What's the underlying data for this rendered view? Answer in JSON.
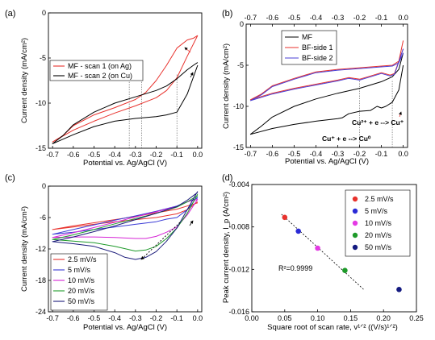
{
  "chart_data": [
    {
      "panel": "(a)",
      "type": "line",
      "xlabel": "Potential vs. Ag/AgCl (V)",
      "ylabel": "Current density (mA/cm²)",
      "xlim": [
        -0.72,
        0.02
      ],
      "ylim": [
        -15,
        0
      ],
      "xticks": [
        -0.7,
        -0.6,
        -0.5,
        -0.4,
        -0.3,
        -0.2,
        -0.1,
        0.0
      ],
      "yticks": [
        -15,
        -10,
        -5,
        0
      ],
      "xtick_labels": [
        "-0.7",
        "-0.6",
        "-0.5",
        "-0.4",
        "-0.3",
        "-0.2",
        "-0.1",
        "0.0"
      ],
      "ytick_labels": [
        "-15",
        "-10",
        "-5",
        "0"
      ],
      "legend_position": "top-left",
      "series": [
        {
          "name": "MF - scan 1 (on Ag)",
          "color": "#e8322d",
          "x": [
            0,
            -0.05,
            -0.1,
            -0.15,
            -0.2,
            -0.3,
            -0.4,
            -0.5,
            -0.6,
            -0.7,
            -0.65,
            -0.6,
            -0.5,
            -0.4,
            -0.3,
            -0.25,
            -0.2,
            -0.15,
            -0.1,
            -0.05,
            -0.02,
            0
          ],
          "y": [
            -2.5,
            -4.8,
            -7.2,
            -8.6,
            -9.4,
            -10.3,
            -11.1,
            -12,
            -13,
            -14.3,
            -13.6,
            -12.5,
            -11.3,
            -10.5,
            -9.6,
            -8.8,
            -7.5,
            -5.8,
            -3.9,
            -3,
            -2.8,
            -2.5
          ]
        },
        {
          "name": "MF - scan 2 (on Cu)",
          "color": "#000000",
          "x": [
            0,
            -0.05,
            -0.1,
            -0.15,
            -0.2,
            -0.3,
            -0.4,
            -0.5,
            -0.6,
            -0.7,
            -0.65,
            -0.6,
            -0.5,
            -0.4,
            -0.3,
            -0.2,
            -0.15,
            -0.1,
            -0.05,
            -0.02,
            0
          ],
          "y": [
            -5.8,
            -9,
            -11,
            -11.3,
            -11.5,
            -11.7,
            -12,
            -12.6,
            -13.5,
            -14.5,
            -13.6,
            -12.4,
            -11,
            -10,
            -9.3,
            -8.6,
            -8.1,
            -7.3,
            -6.3,
            -5.8,
            -5.5
          ]
        }
      ],
      "guides_x": [
        -0.33,
        -0.27,
        -0.1
      ]
    },
    {
      "panel": "(b)",
      "type": "line",
      "xlabel": "Potential vs. Ag/AgCl (V)",
      "ylabel": "Current density (mA/cm²)",
      "xlim": [
        -0.72,
        0.02
      ],
      "ylim": [
        -15,
        0
      ],
      "xticks": [
        -0.7,
        -0.6,
        -0.5,
        -0.4,
        -0.3,
        -0.2,
        -0.1,
        0.0
      ],
      "yticks": [
        -15,
        -10,
        -5,
        0
      ],
      "xtick_labels": [
        "-0.7",
        "-0.6",
        "-0.5",
        "-0.4",
        "-0.3",
        "-0.2",
        "-0.1",
        "0.0"
      ],
      "top_xtick_labels": [
        "-0.7",
        "-0.6",
        "-0.5",
        "-0.4",
        "-0.3",
        "-0.2",
        "-0.1",
        "0.0"
      ],
      "ytick_labels": [
        "-15",
        "-10",
        "-5",
        "0"
      ],
      "legend_position": "top-left",
      "annotations": [
        "Cu²⁺ + e --> Cu⁺",
        "Cu⁺ + e --> Cu⁰"
      ],
      "series": [
        {
          "name": "MF",
          "color": "#000000",
          "x": [
            0,
            -0.02,
            -0.05,
            -0.08,
            -0.1,
            -0.12,
            -0.15,
            -0.2,
            -0.25,
            -0.28,
            -0.3,
            -0.4,
            -0.5,
            -0.6,
            -0.7,
            -0.65,
            -0.6,
            -0.5,
            -0.4,
            -0.3,
            -0.2,
            -0.1,
            -0.05,
            -0.02,
            0
          ],
          "y": [
            -5,
            -8,
            -9.5,
            -10,
            -10.2,
            -10,
            -10.5,
            -10.6,
            -10.9,
            -11.4,
            -11.5,
            -11.8,
            -12.2,
            -12.7,
            -13.4,
            -12.4,
            -11.3,
            -10,
            -9.1,
            -8.4,
            -7.8,
            -7,
            -6.4,
            -5.5,
            -3.5
          ]
        },
        {
          "name": "BF-side 1",
          "color": "#e8322d",
          "x": [
            0,
            -0.02,
            -0.04,
            -0.06,
            -0.1,
            -0.15,
            -0.2,
            -0.25,
            -0.3,
            -0.4,
            -0.5,
            -0.6,
            -0.7,
            -0.65,
            -0.6,
            -0.5,
            -0.4,
            -0.3,
            -0.2,
            -0.1,
            -0.05,
            -0.02,
            0
          ],
          "y": [
            -2,
            -4.5,
            -6,
            -6.2,
            -5.9,
            -6.3,
            -6.7,
            -6.5,
            -6.8,
            -7.3,
            -7.8,
            -8.4,
            -9.2,
            -8.5,
            -7.5,
            -6.6,
            -5.8,
            -5.5,
            -5.3,
            -5.1,
            -5,
            -4.5,
            -3
          ]
        },
        {
          "name": "BF-side 2",
          "color": "#4a3fd6",
          "x": [
            0,
            -0.02,
            -0.04,
            -0.06,
            -0.1,
            -0.15,
            -0.2,
            -0.25,
            -0.3,
            -0.4,
            -0.5,
            -0.6,
            -0.7,
            -0.65,
            -0.6,
            -0.5,
            -0.4,
            -0.3,
            -0.2,
            -0.1,
            -0.05,
            -0.02,
            0
          ],
          "y": [
            -3,
            -4.6,
            -6.1,
            -6.3,
            -6,
            -6.4,
            -6.8,
            -6.6,
            -6.9,
            -7.4,
            -7.9,
            -8.5,
            -9.3,
            -8.6,
            -7.6,
            -6.7,
            -5.9,
            -5.6,
            -5.4,
            -5.2,
            -5.1,
            -4.7,
            -3.5
          ]
        }
      ],
      "guides_x": [
        -0.2,
        -0.05
      ]
    },
    {
      "panel": "(c)",
      "type": "line",
      "xlabel": "Potential vs. Ag/AgCl (V)",
      "ylabel": "Current density (mA/cm²)",
      "xlim": [
        -0.72,
        0.02
      ],
      "ylim": [
        -24,
        0
      ],
      "xticks": [
        -0.7,
        -0.6,
        -0.5,
        -0.4,
        -0.3,
        -0.2,
        -0.1,
        0.0
      ],
      "yticks": [
        -24,
        -18,
        -12,
        -6,
        0
      ],
      "xtick_labels": [
        "-0.7",
        "-0.6",
        "-0.5",
        "-0.4",
        "-0.3",
        "-0.2",
        "-0.1",
        "0.0"
      ],
      "ytick_labels": [
        "-24",
        "-18",
        "-12",
        "-6",
        "0"
      ],
      "legend_position": "bottom-left",
      "series": [
        {
          "name": "2.5 mV/s",
          "color": "#e8322d",
          "x": [
            0,
            -0.05,
            -0.1,
            -0.2,
            -0.3,
            -0.4,
            -0.5,
            -0.6,
            -0.7,
            -0.6,
            -0.5,
            -0.4,
            -0.3,
            -0.2,
            -0.1,
            -0.05,
            0
          ],
          "y": [
            -3,
            -4.5,
            -5.3,
            -6,
            -6.4,
            -6.8,
            -7.3,
            -7.8,
            -8.3,
            -7.6,
            -7,
            -6.4,
            -5.8,
            -5.1,
            -4.4,
            -3.8,
            -3.2
          ]
        },
        {
          "name": "5 mV/s",
          "color": "#3a3ad6",
          "x": [
            0,
            -0.05,
            -0.1,
            -0.15,
            -0.2,
            -0.3,
            -0.4,
            -0.5,
            -0.6,
            -0.7,
            -0.6,
            -0.5,
            -0.4,
            -0.3,
            -0.2,
            -0.1,
            -0.05,
            0
          ],
          "y": [
            -2,
            -4.5,
            -6,
            -6.3,
            -6.8,
            -7.3,
            -7.8,
            -8.3,
            -8.8,
            -9.2,
            -8.3,
            -7.4,
            -6.5,
            -5.7,
            -4.8,
            -3.8,
            -3,
            -2.3
          ]
        },
        {
          "name": "10 mV/s",
          "color": "#d624d6",
          "x": [
            0,
            -0.05,
            -0.1,
            -0.15,
            -0.2,
            -0.25,
            -0.3,
            -0.4,
            -0.5,
            -0.6,
            -0.7,
            -0.6,
            -0.5,
            -0.4,
            -0.3,
            -0.2,
            -0.1,
            -0.05,
            0
          ],
          "y": [
            -2.5,
            -5.5,
            -7.8,
            -8.8,
            -9.6,
            -10,
            -10,
            -9.8,
            -9.7,
            -9.7,
            -9.8,
            -8.9,
            -7.9,
            -6.9,
            -5.9,
            -4.9,
            -3.9,
            -3,
            -2.5
          ]
        },
        {
          "name": "20 mV/s",
          "color": "#1e9a2a",
          "x": [
            0,
            -0.05,
            -0.1,
            -0.15,
            -0.2,
            -0.25,
            -0.3,
            -0.4,
            -0.5,
            -0.6,
            -0.7,
            -0.6,
            -0.5,
            -0.4,
            -0.3,
            -0.2,
            -0.1,
            -0.05,
            0
          ],
          "y": [
            -1.5,
            -5.2,
            -8,
            -10,
            -11.5,
            -12.2,
            -12.4,
            -11.5,
            -10.8,
            -10.5,
            -10.2,
            -9.3,
            -8.3,
            -7.2,
            -6.2,
            -5.2,
            -4,
            -3,
            -1.8
          ]
        },
        {
          "name": "50 mV/s",
          "color": "#1b1b7a",
          "x": [
            0,
            -0.05,
            -0.1,
            -0.15,
            -0.2,
            -0.25,
            -0.3,
            -0.35,
            -0.4,
            -0.5,
            -0.6,
            -0.7,
            -0.6,
            -0.5,
            -0.4,
            -0.3,
            -0.2,
            -0.1,
            -0.05,
            0
          ],
          "y": [
            -1,
            -4.5,
            -8,
            -10.5,
            -12.5,
            -13.6,
            -14,
            -13.6,
            -12.7,
            -11.5,
            -11,
            -10.6,
            -9.7,
            -8.7,
            -7.6,
            -6.4,
            -5.2,
            -3.9,
            -2.7,
            -1.2
          ]
        }
      ]
    },
    {
      "panel": "(d)",
      "type": "scatter",
      "xlabel": "Square root of scan rate, v¹ᐟ² ((V/s)¹ᐟ²)",
      "ylabel": "Peak current density, I_p (A/cm²)",
      "xlim": [
        0.0,
        0.25
      ],
      "ylim": [
        -0.016,
        -0.004
      ],
      "xticks": [
        0.0,
        0.05,
        0.1,
        0.15,
        0.2,
        0.25
      ],
      "yticks": [
        -0.016,
        -0.012,
        -0.008,
        -0.004
      ],
      "xtick_labels": [
        "0.00",
        "0.05",
        "0.10",
        "0.15",
        "0.20",
        "0.25"
      ],
      "ytick_labels": [
        "-0.016",
        "-0.012",
        "-0.008",
        "-0.004"
      ],
      "legend_position": "top-right",
      "annotation": "R²=0.9999",
      "points": [
        {
          "name": "2.5 mV/s",
          "x": 0.05,
          "y": -0.0071,
          "color": "#e8322d"
        },
        {
          "name": "5 mV/s",
          "x": 0.0707,
          "y": -0.0084,
          "color": "#2b2bd6"
        },
        {
          "name": "10 mV/s",
          "x": 0.1,
          "y": -0.01,
          "color": "#e43ae4"
        },
        {
          "name": "20 mV/s",
          "x": 0.1414,
          "y": -0.0121,
          "color": "#1e9a2a"
        },
        {
          "name": "50 mV/s",
          "x": 0.2236,
          "y": -0.0139,
          "color": "#141a80"
        }
      ],
      "fit_line": {
        "x": [
          0.045,
          0.17
        ],
        "y": [
          -0.0068,
          -0.0139
        ]
      }
    }
  ]
}
